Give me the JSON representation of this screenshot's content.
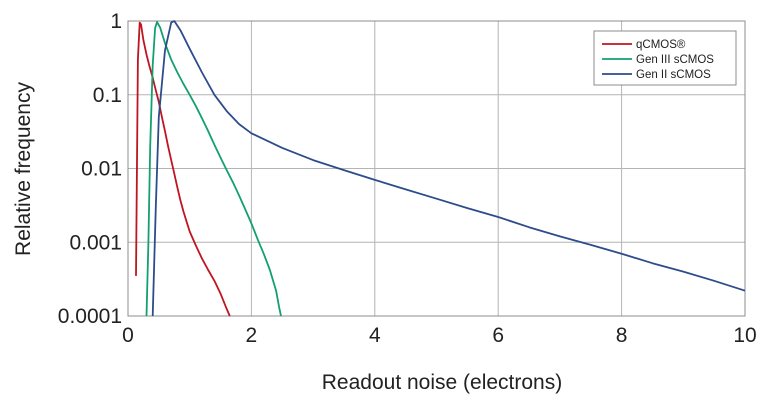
{
  "chart_data": {
    "type": "line",
    "xlabel": "Readout noise (electrons)",
    "ylabel": "Relative frequency",
    "x_scale": "linear",
    "y_scale": "log",
    "xlim": [
      0,
      10
    ],
    "ylim": [
      0.0001,
      1
    ],
    "x_ticks": [
      "0",
      "2",
      "4",
      "6",
      "8",
      "10"
    ],
    "x_tick_values": [
      0,
      2,
      4,
      6,
      8,
      10
    ],
    "y_ticks": [
      "1",
      "0.1",
      "0.01",
      "0.001",
      "0.0001"
    ],
    "y_tick_values": [
      1,
      0.1,
      0.01,
      0.001,
      0.0001
    ],
    "grid": true,
    "legend_position": "top-right",
    "series": [
      {
        "name": "qCMOS®",
        "color": "#c0141f",
        "points": [
          [
            0.13,
            0.00035
          ],
          [
            0.14,
            0.003
          ],
          [
            0.16,
            0.3
          ],
          [
            0.19,
            0.95
          ],
          [
            0.21,
            0.9
          ],
          [
            0.25,
            0.55
          ],
          [
            0.3,
            0.35
          ],
          [
            0.35,
            0.24
          ],
          [
            0.4,
            0.17
          ],
          [
            0.45,
            0.115
          ],
          [
            0.5,
            0.08
          ],
          [
            0.55,
            0.05
          ],
          [
            0.6,
            0.032
          ],
          [
            0.65,
            0.02
          ],
          [
            0.7,
            0.013
          ],
          [
            0.75,
            0.0085
          ],
          [
            0.8,
            0.0055
          ],
          [
            0.85,
            0.0037
          ],
          [
            0.9,
            0.0026
          ],
          [
            0.95,
            0.0019
          ],
          [
            1.0,
            0.0014
          ],
          [
            1.1,
            0.0009
          ],
          [
            1.2,
            0.0006
          ],
          [
            1.3,
            0.00042
          ],
          [
            1.4,
            0.0003
          ],
          [
            1.5,
            0.0002
          ],
          [
            1.6,
            0.000125
          ],
          [
            1.65,
            0.0001
          ]
        ]
      },
      {
        "name": "Gen III sCMOS",
        "color": "#12a070",
        "points": [
          [
            0.3,
            0.0001
          ],
          [
            0.33,
            0.001
          ],
          [
            0.36,
            0.02
          ],
          [
            0.4,
            0.25
          ],
          [
            0.44,
            0.8
          ],
          [
            0.47,
            0.97
          ],
          [
            0.52,
            0.82
          ],
          [
            0.6,
            0.5
          ],
          [
            0.7,
            0.3
          ],
          [
            0.8,
            0.2
          ],
          [
            0.9,
            0.14
          ],
          [
            1.0,
            0.1
          ],
          [
            1.1,
            0.07
          ],
          [
            1.2,
            0.048
          ],
          [
            1.3,
            0.032
          ],
          [
            1.4,
            0.021
          ],
          [
            1.5,
            0.014
          ],
          [
            1.6,
            0.0095
          ],
          [
            1.7,
            0.0065
          ],
          [
            1.8,
            0.0043
          ],
          [
            1.9,
            0.0028
          ],
          [
            2.0,
            0.0018
          ],
          [
            2.1,
            0.0011
          ],
          [
            2.2,
            0.0007
          ],
          [
            2.3,
            0.00042
          ],
          [
            2.4,
            0.00022
          ],
          [
            2.45,
            0.00013
          ],
          [
            2.48,
            0.0001
          ]
        ]
      },
      {
        "name": "Gen II sCMOS",
        "color": "#2d4c8c",
        "points": [
          [
            0.4,
            0.0001
          ],
          [
            0.45,
            0.003
          ],
          [
            0.5,
            0.05
          ],
          [
            0.6,
            0.4
          ],
          [
            0.7,
            0.95
          ],
          [
            0.75,
            1.0
          ],
          [
            0.85,
            0.75
          ],
          [
            1.0,
            0.42
          ],
          [
            1.2,
            0.2
          ],
          [
            1.4,
            0.1
          ],
          [
            1.6,
            0.06
          ],
          [
            1.8,
            0.04
          ],
          [
            2.0,
            0.03
          ],
          [
            2.5,
            0.019
          ],
          [
            3.0,
            0.013
          ],
          [
            3.5,
            0.0095
          ],
          [
            4.0,
            0.007
          ],
          [
            4.5,
            0.0052
          ],
          [
            5.0,
            0.0039
          ],
          [
            5.5,
            0.0029
          ],
          [
            6.0,
            0.0022
          ],
          [
            6.5,
            0.0016
          ],
          [
            7.0,
            0.0012
          ],
          [
            7.5,
            0.00092
          ],
          [
            8.0,
            0.0007
          ],
          [
            8.5,
            0.00052
          ],
          [
            9.0,
            0.0004
          ],
          [
            9.5,
            0.0003
          ],
          [
            10.0,
            0.00022
          ]
        ]
      }
    ]
  }
}
